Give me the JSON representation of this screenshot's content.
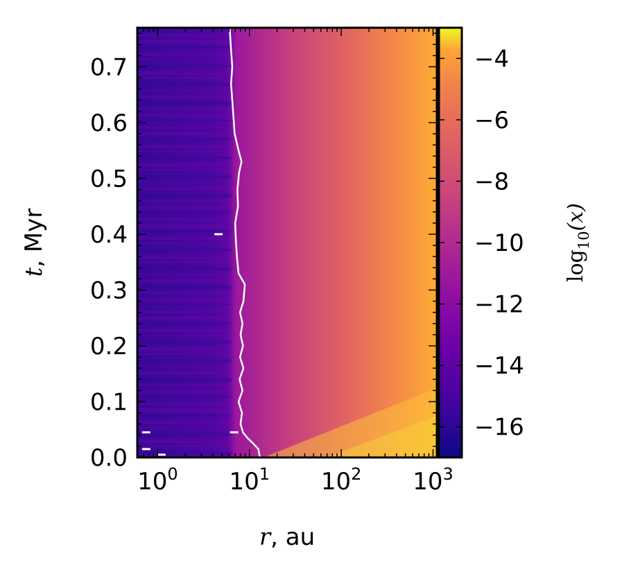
{
  "chart_data": {
    "type": "heatmap",
    "title": "",
    "x": {
      "label_symbol": "r",
      "label_suffix": ", au",
      "scale": "log",
      "range": [
        0.6,
        1100
      ],
      "ticks": [
        {
          "value": 1,
          "base": "10",
          "exp": "0"
        },
        {
          "value": 10,
          "base": "10",
          "exp": "1"
        },
        {
          "value": 100,
          "base": "10",
          "exp": "2"
        },
        {
          "value": 1000,
          "base": "10",
          "exp": "3"
        }
      ]
    },
    "y": {
      "label_symbol": "t",
      "label_suffix": ", Myr",
      "scale": "linear",
      "range": [
        0.0,
        0.77
      ],
      "ticks": [
        {
          "value": 0.0,
          "label": "0.0"
        },
        {
          "value": 0.1,
          "label": "0.1"
        },
        {
          "value": 0.2,
          "label": "0.2"
        },
        {
          "value": 0.3,
          "label": "0.3"
        },
        {
          "value": 0.4,
          "label": "0.4"
        },
        {
          "value": 0.5,
          "label": "0.5"
        },
        {
          "value": 0.6,
          "label": "0.6"
        },
        {
          "value": 0.7,
          "label": "0.7"
        }
      ]
    },
    "colorbar": {
      "label_base": "log",
      "label_sub": "10",
      "label_arg": "(x)",
      "colormap": "plasma",
      "range": [
        -17,
        -3
      ],
      "ticks": [
        {
          "value": -4,
          "label": "−4"
        },
        {
          "value": -6,
          "label": "−6"
        },
        {
          "value": -8,
          "label": "−8"
        },
        {
          "value": -10,
          "label": "−10"
        },
        {
          "value": -12,
          "label": "−12"
        },
        {
          "value": -14,
          "label": "−14"
        },
        {
          "value": -16,
          "label": "−16"
        }
      ]
    },
    "contour": {
      "color": "#ffffff",
      "points": [
        [
          13.0,
          0.0
        ],
        [
          12.5,
          0.015
        ],
        [
          11.0,
          0.025
        ],
        [
          9.5,
          0.035
        ],
        [
          8.5,
          0.045
        ],
        [
          8.0,
          0.06
        ],
        [
          8.3,
          0.08
        ],
        [
          7.6,
          0.1
        ],
        [
          8.4,
          0.12
        ],
        [
          7.8,
          0.14
        ],
        [
          8.6,
          0.16
        ],
        [
          7.9,
          0.18
        ],
        [
          8.5,
          0.2
        ],
        [
          8.0,
          0.22
        ],
        [
          8.4,
          0.24
        ],
        [
          7.9,
          0.26
        ],
        [
          8.6,
          0.28
        ],
        [
          8.9,
          0.31
        ],
        [
          7.6,
          0.33
        ],
        [
          7.3,
          0.36
        ],
        [
          7.1,
          0.39
        ],
        [
          7.0,
          0.42
        ],
        [
          7.5,
          0.45
        ],
        [
          7.4,
          0.48
        ],
        [
          7.7,
          0.51
        ],
        [
          8.2,
          0.53
        ],
        [
          7.6,
          0.55
        ],
        [
          6.9,
          0.58
        ],
        [
          6.7,
          0.61
        ],
        [
          6.5,
          0.64
        ],
        [
          6.3,
          0.67
        ],
        [
          6.5,
          0.7
        ],
        [
          6.3,
          0.73
        ],
        [
          6.1,
          0.77
        ]
      ],
      "islands": [
        [
          4.6,
          0.4
        ],
        [
          6.8,
          0.045
        ],
        [
          0.75,
          0.045
        ],
        [
          0.75,
          0.015
        ],
        [
          1.1,
          0.005
        ]
      ]
    }
  }
}
